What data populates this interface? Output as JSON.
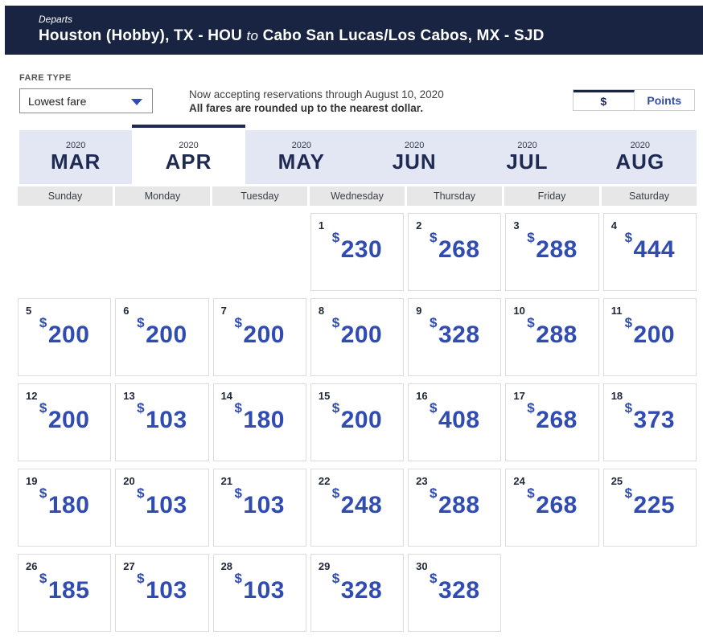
{
  "header": {
    "departs_label": "Departs",
    "route_from": "Houston (Hobby), TX - HOU",
    "to_word": "to",
    "route_to": "Cabo San Lucas/Los Cabos, MX - SJD"
  },
  "fare_type": {
    "label": "FARE TYPE",
    "selected_option": "Lowest fare"
  },
  "notice": {
    "line1": "Now accepting reservations through August 10, 2020",
    "line2": "All fares are rounded up to the nearest dollar."
  },
  "currency_toggle": {
    "dollar_label": "$",
    "points_label": "Points",
    "selected": "$"
  },
  "month_tabs": [
    {
      "year": "2020",
      "month": "MAR",
      "selected": false
    },
    {
      "year": "2020",
      "month": "APR",
      "selected": true
    },
    {
      "year": "2020",
      "month": "MAY",
      "selected": false
    },
    {
      "year": "2020",
      "month": "JUN",
      "selected": false
    },
    {
      "year": "2020",
      "month": "JUL",
      "selected": false
    },
    {
      "year": "2020",
      "month": "AUG",
      "selected": false
    }
  ],
  "weekdays": [
    "Sunday",
    "Monday",
    "Tuesday",
    "Wednesday",
    "Thursday",
    "Friday",
    "Saturday"
  ],
  "calendar": {
    "currency_symbol": "$",
    "weeks": [
      [
        null,
        null,
        null,
        {
          "date": "1",
          "price": "230"
        },
        {
          "date": "2",
          "price": "268"
        },
        {
          "date": "3",
          "price": "288"
        },
        {
          "date": "4",
          "price": "444"
        }
      ],
      [
        {
          "date": "5",
          "price": "200"
        },
        {
          "date": "6",
          "price": "200"
        },
        {
          "date": "7",
          "price": "200"
        },
        {
          "date": "8",
          "price": "200"
        },
        {
          "date": "9",
          "price": "328"
        },
        {
          "date": "10",
          "price": "288"
        },
        {
          "date": "11",
          "price": "200"
        }
      ],
      [
        {
          "date": "12",
          "price": "200"
        },
        {
          "date": "13",
          "price": "103"
        },
        {
          "date": "14",
          "price": "180"
        },
        {
          "date": "15",
          "price": "200"
        },
        {
          "date": "16",
          "price": "408"
        },
        {
          "date": "17",
          "price": "268"
        },
        {
          "date": "18",
          "price": "373"
        }
      ],
      [
        {
          "date": "19",
          "price": "180"
        },
        {
          "date": "20",
          "price": "103"
        },
        {
          "date": "21",
          "price": "103"
        },
        {
          "date": "22",
          "price": "248"
        },
        {
          "date": "23",
          "price": "288"
        },
        {
          "date": "24",
          "price": "268"
        },
        {
          "date": "25",
          "price": "225"
        }
      ],
      [
        {
          "date": "26",
          "price": "185"
        },
        {
          "date": "27",
          "price": "103"
        },
        {
          "date": "28",
          "price": "103"
        },
        {
          "date": "29",
          "price": "328"
        },
        {
          "date": "30",
          "price": "328"
        },
        null,
        null
      ]
    ]
  },
  "colors": {
    "header_bg": "#182442",
    "navy_text": "#1e2a52",
    "price_blue": "#304cb2",
    "tab_bg": "#e3e7f4",
    "weekday_bg": "#e7e7e7"
  }
}
